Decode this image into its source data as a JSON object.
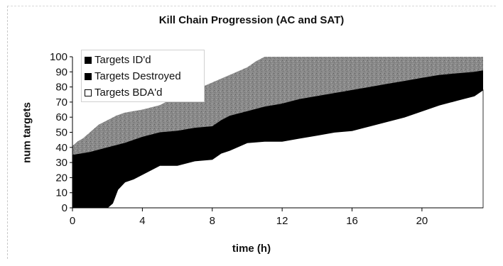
{
  "chart_data": {
    "type": "area",
    "title": "Kill Chain Progression (AC and SAT)",
    "xlabel": "time (h)",
    "ylabel": "num targets",
    "xlim": [
      0,
      23.5
    ],
    "ylim": [
      0,
      100
    ],
    "x_ticks": [
      0,
      4,
      8,
      12,
      16,
      20
    ],
    "y_ticks": [
      0,
      10,
      20,
      30,
      40,
      50,
      60,
      70,
      80,
      90,
      100
    ],
    "legend_position": "top-left",
    "series": [
      {
        "name": "Targets ID'd",
        "color": "#8a8a8a",
        "x": [
          0,
          0.1,
          0.3,
          0.6,
          1,
          1.5,
          2,
          2.5,
          3,
          4,
          5,
          6,
          7,
          8,
          9,
          10,
          10.5,
          11,
          12,
          14,
          16,
          18,
          20,
          22,
          23.5
        ],
        "values": [
          41,
          42,
          44,
          46,
          50,
          55,
          58,
          61,
          63,
          65,
          68,
          74,
          78,
          83,
          88,
          93,
          97,
          100,
          100,
          100,
          100,
          100,
          100,
          100,
          100
        ]
      },
      {
        "name": "Targets Destroyed",
        "color": "#000000",
        "x": [
          0,
          1,
          2,
          3,
          4,
          5,
          6,
          7,
          8,
          8.5,
          9,
          10,
          11,
          12,
          13,
          14,
          15,
          16,
          17,
          18,
          19,
          20,
          21,
          22,
          23,
          23.5
        ],
        "values": [
          35,
          37,
          40,
          43,
          47,
          50,
          51,
          53,
          54,
          58,
          61,
          64,
          67,
          69,
          72,
          74,
          76,
          78,
          80,
          82,
          84,
          86,
          88,
          89,
          90,
          91
        ]
      },
      {
        "name": "Targets BDA'd",
        "color": "#ffffff",
        "x": [
          0,
          2,
          2.3,
          2.6,
          3,
          3.5,
          4,
          4.5,
          5,
          6,
          7,
          8,
          8.5,
          9,
          10,
          11,
          12,
          13,
          14,
          15,
          16,
          17,
          18,
          19,
          20,
          21,
          22,
          23,
          23.5
        ],
        "values": [
          0,
          0,
          3,
          12,
          17,
          19,
          22,
          25,
          28,
          28,
          31,
          32,
          36,
          38,
          43,
          44,
          44,
          46,
          48,
          50,
          51,
          54,
          57,
          60,
          64,
          68,
          71,
          74,
          78
        ]
      }
    ]
  }
}
